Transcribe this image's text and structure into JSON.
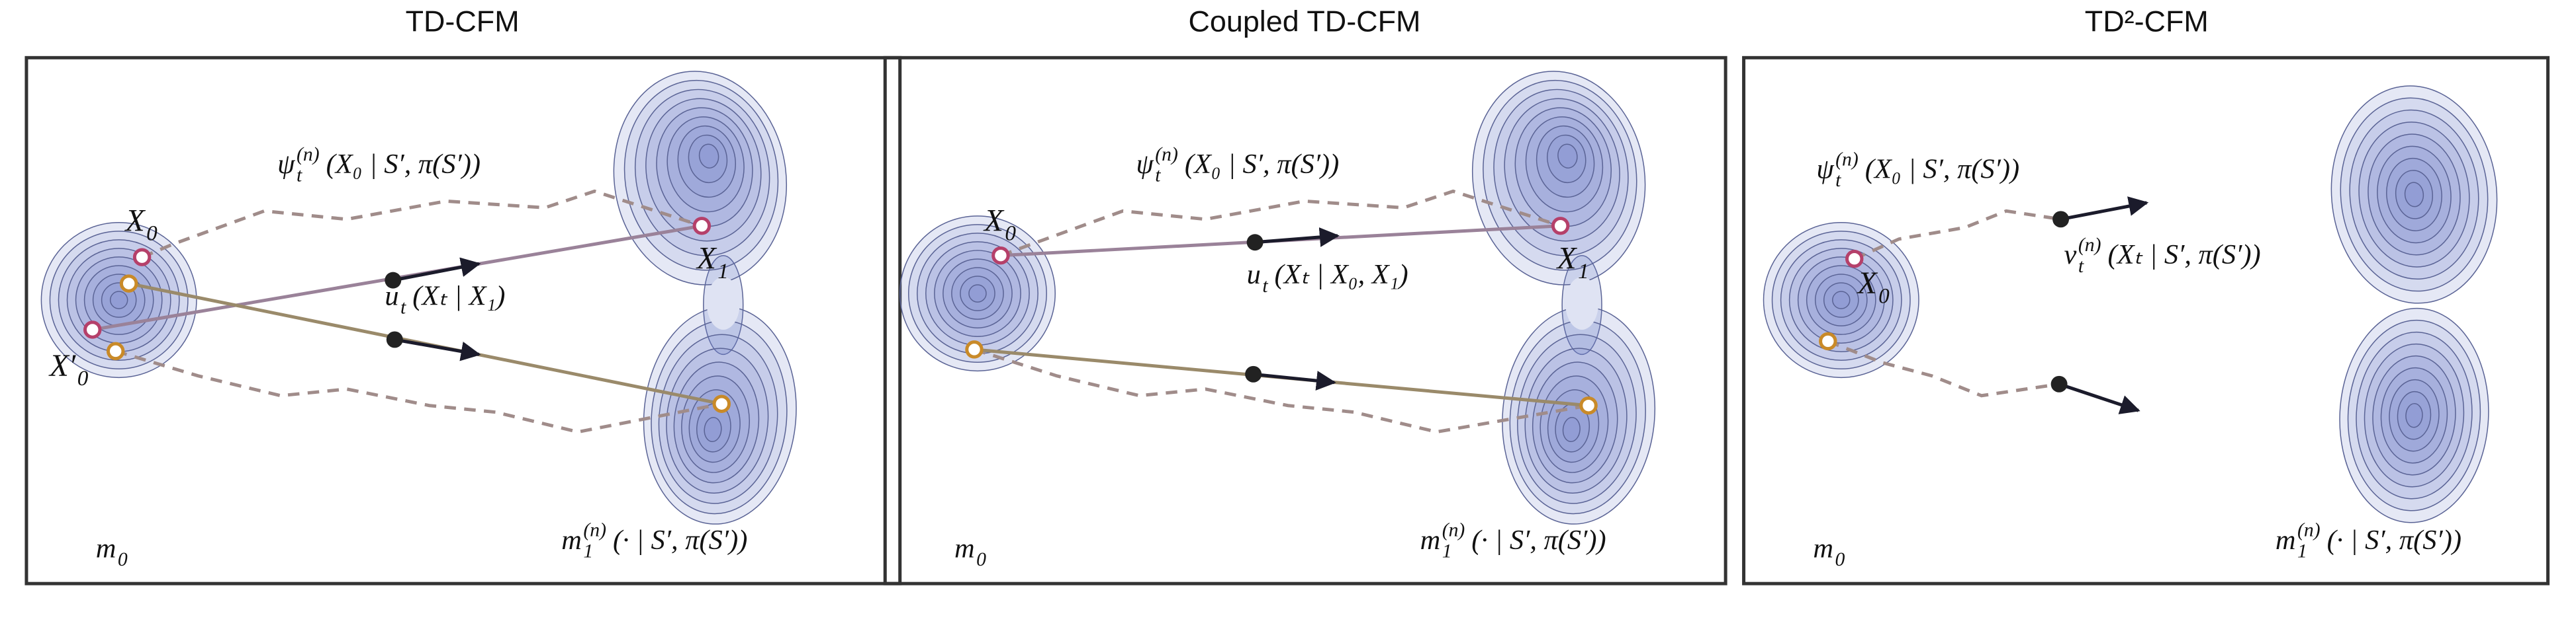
{
  "panels": [
    {
      "title": "TD-CFM",
      "labels": {
        "psi": {
          "text": "ψ",
          "sup": "(n)",
          "sub": "t",
          "args": "(X₀ | S′, π(S′))"
        },
        "x0": {
          "text": "X",
          "sub": "0"
        },
        "x0p": {
          "text": "X′",
          "sub": "0"
        },
        "x1": {
          "text": "X",
          "sub": "1"
        },
        "field": {
          "text": "u",
          "sub": "t",
          "args": "(Xₜ | X₁)"
        },
        "m0": {
          "text": "m",
          "sub": "0"
        },
        "m1": {
          "text": "m",
          "sup": "(n)",
          "sub": "1",
          "args": "(· | S′, π(S′))"
        }
      }
    },
    {
      "title": "Coupled TD-CFM",
      "labels": {
        "psi": {
          "text": "ψ",
          "sup": "(n)",
          "sub": "t",
          "args": "(X₀ | S′, π(S′))"
        },
        "x0": {
          "text": "X",
          "sub": "0"
        },
        "x1": {
          "text": "X",
          "sub": "1"
        },
        "field": {
          "text": "u",
          "sub": "t",
          "args": "(Xₜ | X₀, X₁)"
        },
        "m0": {
          "text": "m",
          "sub": "0"
        },
        "m1": {
          "text": "m",
          "sup": "(n)",
          "sub": "1",
          "args": "(· | S′, π(S′))"
        }
      }
    },
    {
      "title": "TD²-CFM",
      "labels": {
        "psi": {
          "text": "ψ",
          "sup": "(n)",
          "sub": "t",
          "args": "(X₀ | S′, π(S′))"
        },
        "x0": {
          "text": "X",
          "sub": "0"
        },
        "field": {
          "text": "v",
          "sup": "(n)",
          "sub": "t",
          "args": "(Xₜ | S′, π(S′))"
        },
        "m0": {
          "text": "m",
          "sub": "0"
        },
        "m1": {
          "text": "m",
          "sup": "(n)",
          "sub": "1",
          "args": "(· | S′, π(S′))"
        }
      }
    }
  ]
}
